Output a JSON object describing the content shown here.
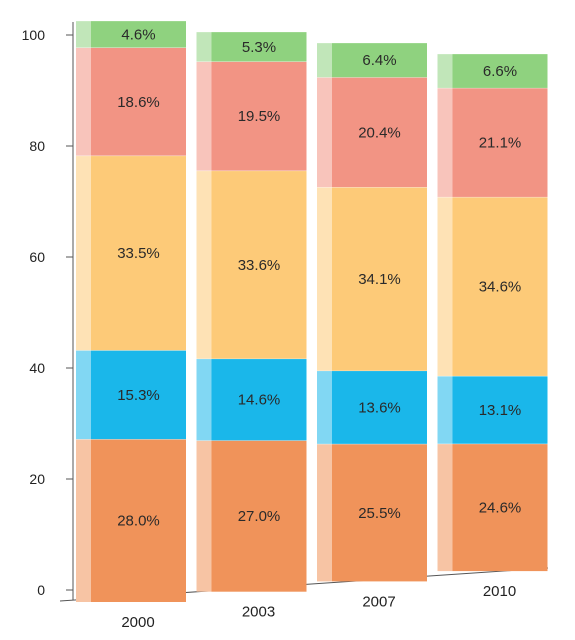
{
  "chart_data": {
    "type": "bar",
    "stacked": true,
    "categories": [
      "2000",
      "2003",
      "2007",
      "2010"
    ],
    "series": [
      {
        "values": [
          28.0,
          27.0,
          25.5,
          24.6
        ],
        "labels": [
          "28.0%",
          "27.0%",
          "25.5%",
          "24.6%"
        ],
        "color": "#f0935a"
      },
      {
        "values": [
          15.3,
          14.6,
          13.6,
          13.1
        ],
        "labels": [
          "15.3%",
          "14.6%",
          "13.6%",
          "13.1%"
        ],
        "color": "#1ab7ea"
      },
      {
        "values": [
          33.5,
          33.6,
          34.1,
          34.6
        ],
        "labels": [
          "33.5%",
          "33.6%",
          "34.1%",
          "34.6%"
        ],
        "color": "#fdca78"
      },
      {
        "values": [
          18.6,
          19.5,
          20.4,
          21.1
        ],
        "labels": [
          "18.6%",
          "19.5%",
          "20.4%",
          "21.1%"
        ],
        "color": "#f29484"
      },
      {
        "values": [
          4.6,
          5.3,
          6.4,
          6.6
        ],
        "labels": [
          "4.6%",
          "5.3%",
          "6.4%",
          "6.6%"
        ],
        "color": "#8fd27f"
      }
    ],
    "yticks": [
      "0",
      "20",
      "40",
      "60",
      "80",
      "100"
    ],
    "ylim": [
      0,
      100
    ],
    "grid": false,
    "legend": false,
    "style": "3d-perspective-columns"
  }
}
